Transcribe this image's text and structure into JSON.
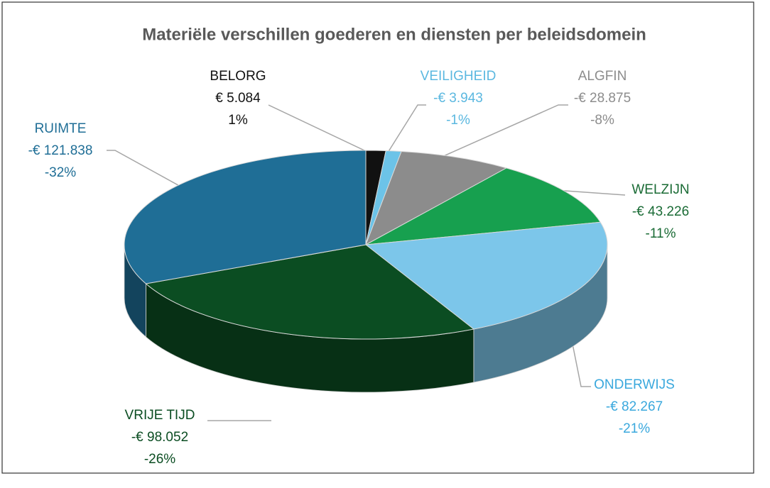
{
  "chart_data": {
    "type": "pie3d",
    "title": "Materiële verschillen goederen en diensten per beleidsdomein",
    "categories": [
      "BELORG",
      "VEILIGHEID",
      "ALGFIN",
      "WELZIJN",
      "ONDERWIJS",
      "VRIJE TIJD",
      "RUIMTE"
    ],
    "values": [
      5084,
      -3943,
      -28875,
      -43226,
      -82267,
      -98052,
      -121838
    ],
    "value_labels": [
      "€ 5.084",
      "-€ 3.943",
      "-€ 28.875",
      "-€ 43.226",
      "-€ 82.267",
      "-€ 98.052",
      "-€ 121.838"
    ],
    "percentages": [
      1,
      -1,
      -8,
      -11,
      -21,
      -26,
      -32
    ],
    "percentage_labels": [
      "1%",
      "-1%",
      "-8%",
      "-11%",
      "-21%",
      "-26%",
      "-32%"
    ],
    "colors": [
      "#111111",
      "#6cc3e8",
      "#8c8c8c",
      "#17a04f",
      "#7cc6ea",
      "#0b4d22",
      "#1f6e96"
    ],
    "label_colors": [
      "#111111",
      "#5bb8e0",
      "#8c8c8c",
      "#1a6b35",
      "#3aa8dd",
      "#0b4d22",
      "#1f6e96"
    ]
  }
}
